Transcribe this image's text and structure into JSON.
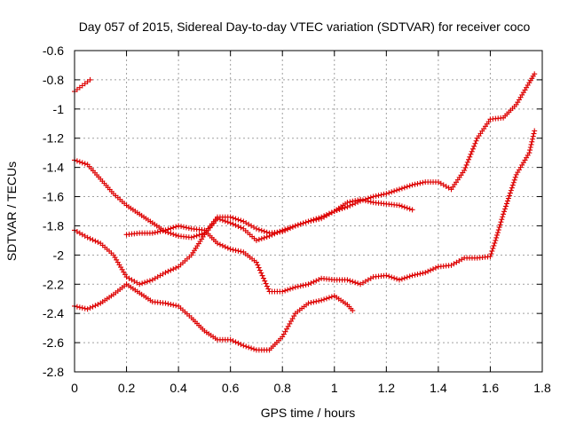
{
  "chart_data": {
    "type": "scatter",
    "title": "Day 057 of 2015, Sidereal Day-to-day VTEC variation (SDTVAR) for receiver coco",
    "xlabel": "GPS time / hours",
    "ylabel": "SDTVAR / TECUs",
    "xlim": [
      0,
      1.8
    ],
    "ylim": [
      -2.8,
      -0.6
    ],
    "x_ticks": [
      "0",
      "0.2",
      "0.4",
      "0.6",
      "0.8",
      "1",
      "1.2",
      "1.4",
      "1.6",
      "1.8"
    ],
    "y_ticks": [
      "-0.6",
      "-0.8",
      "-1",
      "-1.2",
      "-1.4",
      "-1.6",
      "-1.8",
      "-2",
      "-2.2",
      "-2.4",
      "-2.6",
      "-2.8"
    ],
    "grid": true,
    "marker": "+",
    "color": "#dd0000",
    "series": [
      {
        "x": [
          0,
          0.03,
          0.06
        ],
        "y": [
          -0.88,
          -0.84,
          -0.8
        ]
      },
      {
        "x": [
          0,
          0.05,
          0.1,
          0.15,
          0.2,
          0.25,
          0.3,
          0.35,
          0.4,
          0.45,
          0.5,
          0.55,
          0.6,
          0.65,
          0.7,
          0.75,
          0.8,
          0.85,
          0.9,
          0.95,
          1.0,
          1.05,
          1.1,
          1.15,
          1.2,
          1.25,
          1.3
        ],
        "y": [
          -1.35,
          -1.38,
          -1.48,
          -1.58,
          -1.66,
          -1.72,
          -1.78,
          -1.84,
          -1.87,
          -1.88,
          -1.85,
          -1.74,
          -1.74,
          -1.77,
          -1.82,
          -1.85,
          -1.84,
          -1.8,
          -1.77,
          -1.74,
          -1.7,
          -1.64,
          -1.62,
          -1.64,
          -1.65,
          -1.66,
          -1.69
        ]
      },
      {
        "x": [
          0,
          0.05,
          0.1,
          0.15,
          0.2,
          0.25,
          0.3,
          0.35,
          0.4,
          0.45,
          0.5,
          0.55,
          0.6,
          0.65,
          0.7,
          0.75,
          0.8,
          0.85,
          0.9,
          0.95,
          1.0,
          1.05,
          1.1,
          1.15,
          1.2,
          1.25,
          1.3,
          1.35,
          1.4,
          1.45,
          1.5,
          1.55,
          1.6,
          1.65,
          1.7,
          1.75,
          1.77
        ],
        "y": [
          -1.83,
          -1.88,
          -1.92,
          -2.0,
          -2.15,
          -2.2,
          -2.17,
          -2.12,
          -2.08,
          -2.0,
          -1.86,
          -1.75,
          -1.78,
          -1.82,
          -1.9,
          -1.87,
          -1.83,
          -1.8,
          -1.77,
          -1.75,
          -1.7,
          -1.67,
          -1.63,
          -1.6,
          -1.58,
          -1.55,
          -1.52,
          -1.5,
          -1.5,
          -1.55,
          -1.42,
          -1.2,
          -1.07,
          -1.06,
          -0.97,
          -0.82,
          -0.76
        ]
      },
      {
        "x": [
          0,
          0.05,
          0.1,
          0.15,
          0.2,
          0.25,
          0.3,
          0.35,
          0.4,
          0.45,
          0.5,
          0.55,
          0.6,
          0.65,
          0.7,
          0.75,
          0.8,
          0.85,
          0.9,
          0.95,
          1.0,
          1.05,
          1.07
        ],
        "y": [
          -2.35,
          -2.37,
          -2.33,
          -2.27,
          -2.2,
          -2.26,
          -2.32,
          -2.33,
          -2.35,
          -2.43,
          -2.52,
          -2.58,
          -2.58,
          -2.62,
          -2.65,
          -2.65,
          -2.56,
          -2.4,
          -2.33,
          -2.31,
          -2.28,
          -2.34,
          -2.38
        ]
      },
      {
        "x": [
          0.2,
          0.25,
          0.3,
          0.35,
          0.4,
          0.45,
          0.5,
          0.55,
          0.6,
          0.65,
          0.7,
          0.75,
          0.8,
          0.85,
          0.9,
          0.95,
          1.0,
          1.05,
          1.1,
          1.15,
          1.2,
          1.25,
          1.3,
          1.35,
          1.4,
          1.45,
          1.5,
          1.55,
          1.6,
          1.62,
          1.65,
          1.7,
          1.75,
          1.77
        ],
        "y": [
          -1.86,
          -1.85,
          -1.85,
          -1.83,
          -1.8,
          -1.82,
          -1.83,
          -1.92,
          -1.96,
          -1.98,
          -2.05,
          -2.25,
          -2.25,
          -2.22,
          -2.2,
          -2.16,
          -2.17,
          -2.17,
          -2.2,
          -2.15,
          -2.14,
          -2.17,
          -2.14,
          -2.12,
          -2.08,
          -2.07,
          -2.02,
          -2.02,
          -2.01,
          -1.9,
          -1.72,
          -1.45,
          -1.3,
          -1.15
        ]
      }
    ]
  }
}
